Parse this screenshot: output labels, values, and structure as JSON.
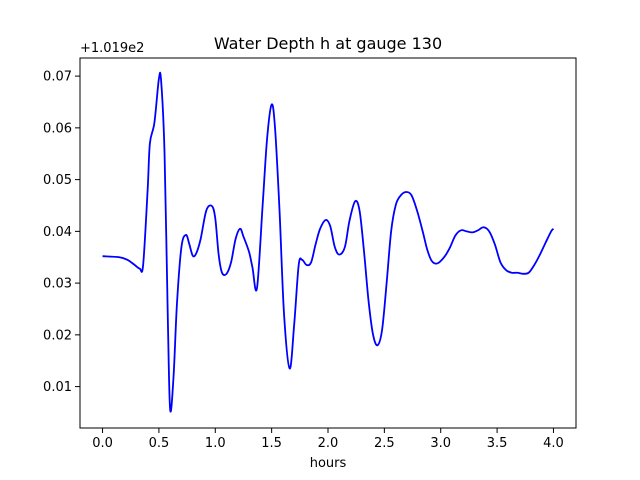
{
  "chart_data": {
    "type": "line",
    "title": "Water Depth h at gauge 130",
    "xlabel": "hours",
    "ylabel": "",
    "offset_label": "+1.019e2",
    "xlim": [
      -0.2,
      4.2
    ],
    "ylim": [
      0.002,
      0.0735
    ],
    "xticks": [
      {
        "value": 0.0,
        "label": "0.0"
      },
      {
        "value": 0.5,
        "label": "0.5"
      },
      {
        "value": 1.0,
        "label": "1.0"
      },
      {
        "value": 1.5,
        "label": "1.5"
      },
      {
        "value": 2.0,
        "label": "2.0"
      },
      {
        "value": 2.5,
        "label": "2.5"
      },
      {
        "value": 3.0,
        "label": "3.0"
      },
      {
        "value": 3.5,
        "label": "3.5"
      },
      {
        "value": 4.0,
        "label": "4.0"
      }
    ],
    "yticks": [
      {
        "value": 0.01,
        "label": "0.01"
      },
      {
        "value": 0.02,
        "label": "0.02"
      },
      {
        "value": 0.03,
        "label": "0.03"
      },
      {
        "value": 0.04,
        "label": "0.04"
      },
      {
        "value": 0.05,
        "label": "0.05"
      },
      {
        "value": 0.06,
        "label": "0.06"
      },
      {
        "value": 0.07,
        "label": "0.07"
      }
    ],
    "grid": false,
    "series": [
      {
        "color": "#0000ff",
        "x": [
          0.0,
          0.15,
          0.22,
          0.28,
          0.33,
          0.36,
          0.4,
          0.42,
          0.46,
          0.5,
          0.52,
          0.55,
          0.58,
          0.6,
          0.63,
          0.66,
          0.7,
          0.74,
          0.77,
          0.8,
          0.83,
          0.87,
          0.92,
          0.97,
          1.0,
          1.03,
          1.06,
          1.1,
          1.14,
          1.18,
          1.22,
          1.25,
          1.3,
          1.33,
          1.37,
          1.42,
          1.46,
          1.5,
          1.53,
          1.57,
          1.61,
          1.66,
          1.7,
          1.74,
          1.77,
          1.81,
          1.85,
          1.89,
          1.93,
          1.98,
          2.02,
          2.06,
          2.1,
          2.15,
          2.19,
          2.24,
          2.28,
          2.32,
          2.36,
          2.4,
          2.44,
          2.48,
          2.52,
          2.56,
          2.6,
          2.64,
          2.69,
          2.74,
          2.79,
          2.84,
          2.88,
          2.92,
          2.97,
          3.03,
          3.08,
          3.13,
          3.18,
          3.23,
          3.28,
          3.33,
          3.38,
          3.43,
          3.48,
          3.53,
          3.58,
          3.63,
          3.68,
          3.73,
          3.78,
          3.83,
          3.88,
          3.93,
          3.98,
          4.0
        ],
        "y": [
          0.0352,
          0.035,
          0.0345,
          0.0336,
          0.0328,
          0.0335,
          0.048,
          0.057,
          0.061,
          0.0695,
          0.069,
          0.055,
          0.022,
          0.0055,
          0.012,
          0.026,
          0.037,
          0.0393,
          0.0375,
          0.0353,
          0.0357,
          0.0385,
          0.044,
          0.0449,
          0.0425,
          0.0355,
          0.032,
          0.0318,
          0.034,
          0.0385,
          0.0405,
          0.039,
          0.036,
          0.033,
          0.029,
          0.045,
          0.058,
          0.0645,
          0.06,
          0.044,
          0.024,
          0.0135,
          0.022,
          0.0335,
          0.0345,
          0.0335,
          0.034,
          0.0375,
          0.0405,
          0.0422,
          0.041,
          0.037,
          0.0355,
          0.037,
          0.042,
          0.0458,
          0.044,
          0.036,
          0.0265,
          0.02,
          0.018,
          0.021,
          0.03,
          0.04,
          0.045,
          0.0468,
          0.0476,
          0.047,
          0.044,
          0.04,
          0.0365,
          0.0343,
          0.0338,
          0.035,
          0.0368,
          0.0392,
          0.0402,
          0.04,
          0.0398,
          0.0402,
          0.0408,
          0.04,
          0.0375,
          0.034,
          0.0325,
          0.032,
          0.032,
          0.0318,
          0.032,
          0.0335,
          0.0355,
          0.0378,
          0.04,
          0.0405
        ]
      }
    ]
  }
}
